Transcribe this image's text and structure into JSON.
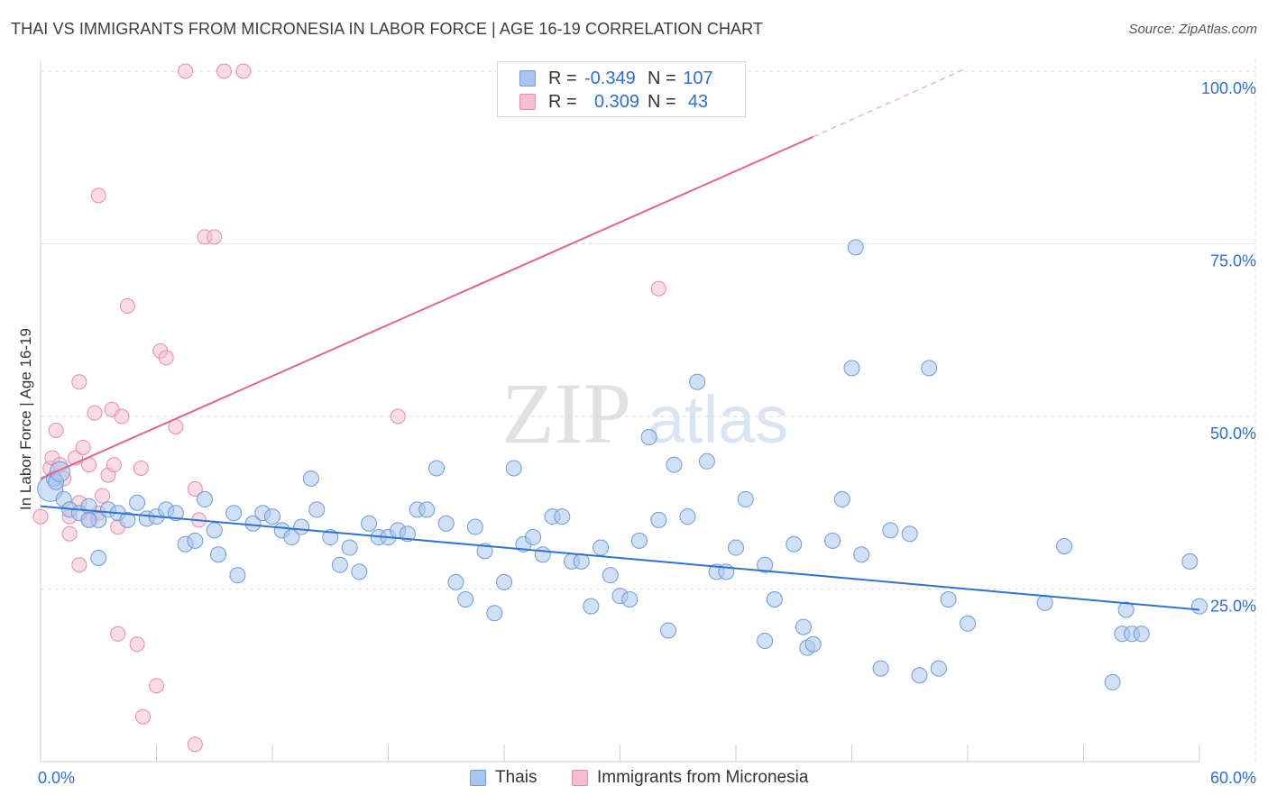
{
  "title": "THAI VS IMMIGRANTS FROM MICRONESIA IN LABOR FORCE | AGE 16-19 CORRELATION CHART",
  "source": "Source: ZipAtlas.com",
  "watermark": {
    "zip": "ZIP",
    "atlas": "atlas"
  },
  "colors": {
    "blue_fill": "#a9c6ee",
    "blue_stroke": "#6f9bd8",
    "blue_line": "#2f72cf",
    "pink_fill": "#f6bfd0",
    "pink_stroke": "#e98aab",
    "pink_line": "#e2648f",
    "axis_text": "#2e6fd1",
    "grid": "#dcdcdc"
  },
  "legend": {
    "rows": [
      {
        "r_label": "R =",
        "r_value": "-0.349",
        "n_label": "N =",
        "n_value": "107"
      },
      {
        "r_label": "R =",
        "r_value": "0.309",
        "n_label": "N =",
        "n_value": "43"
      }
    ]
  },
  "bottom_legend": {
    "series1": "Thais",
    "series2": "Immigrants from Micronesia"
  },
  "chart_data": {
    "type": "scatter",
    "title": "THAI VS IMMIGRANTS FROM MICRONESIA IN LABOR FORCE | AGE 16-19 CORRELATION CHART",
    "xlabel": "",
    "ylabel": "In Labor Force | Age 16-19",
    "xlim": [
      0,
      60
    ],
    "ylim": [
      0,
      100
    ],
    "x_tick_labels": [
      "0.0%",
      "60.0%"
    ],
    "y_tick_labels": [
      "25.0%",
      "50.0%",
      "75.0%",
      "100.0%"
    ],
    "y_ticks": [
      25,
      50,
      75,
      100
    ],
    "grid": true,
    "legend_placement": "top-center",
    "series": [
      {
        "name": "Thais",
        "r": -0.349,
        "n": 107,
        "trend": {
          "x": [
            0,
            60
          ],
          "y": [
            37.0,
            22.0
          ]
        },
        "points": [
          [
            0.5,
            39.5
          ],
          [
            0.7,
            41
          ],
          [
            1.2,
            38
          ],
          [
            1.5,
            36.5
          ],
          [
            2,
            36
          ],
          [
            2.5,
            37
          ],
          [
            3,
            35
          ],
          [
            3.5,
            36.5
          ],
          [
            4,
            36
          ],
          [
            3,
            29.5
          ],
          [
            4.5,
            35
          ],
          [
            5,
            37.5
          ],
          [
            5.5,
            35.2
          ],
          [
            6,
            35.5
          ],
          [
            6.5,
            36.5
          ],
          [
            7,
            36
          ],
          [
            7.5,
            31.5
          ],
          [
            8,
            32
          ],
          [
            8.5,
            38
          ],
          [
            9,
            33.5
          ],
          [
            9.2,
            30
          ],
          [
            10,
            36
          ],
          [
            10.2,
            27
          ],
          [
            11,
            34.5
          ],
          [
            11.5,
            36
          ],
          [
            12,
            35.5
          ],
          [
            12.5,
            33.5
          ],
          [
            13,
            32.5
          ],
          [
            14,
            41
          ],
          [
            14.3,
            36.5
          ],
          [
            15,
            32.5
          ],
          [
            15.5,
            28.5
          ],
          [
            16,
            31
          ],
          [
            16.5,
            27.5
          ],
          [
            17,
            34.5
          ],
          [
            17.5,
            32.5
          ],
          [
            18,
            32.5
          ],
          [
            18.5,
            33.5
          ],
          [
            19,
            33
          ],
          [
            19.5,
            36.5
          ],
          [
            20,
            36.5
          ],
          [
            20.5,
            42.5
          ],
          [
            21,
            34.5
          ],
          [
            21.5,
            26
          ],
          [
            22,
            23.5
          ],
          [
            22.5,
            34
          ],
          [
            23,
            30.5
          ],
          [
            23.5,
            21.5
          ],
          [
            24,
            26
          ],
          [
            24.5,
            42.5
          ],
          [
            25,
            31.5
          ],
          [
            25.5,
            32.5
          ],
          [
            26,
            30
          ],
          [
            26.5,
            35.5
          ],
          [
            27,
            35.5
          ],
          [
            27.5,
            29
          ],
          [
            28,
            29
          ],
          [
            28.5,
            22.5
          ],
          [
            29,
            31
          ],
          [
            29.5,
            27
          ],
          [
            30,
            24
          ],
          [
            30.5,
            23.5
          ],
          [
            31,
            32
          ],
          [
            31.5,
            47
          ],
          [
            32,
            35
          ],
          [
            32.5,
            19
          ],
          [
            32.8,
            43
          ],
          [
            33.5,
            35.5
          ],
          [
            34,
            55
          ],
          [
            34.5,
            43.5
          ],
          [
            35,
            27.5
          ],
          [
            35.5,
            27.5
          ],
          [
            36,
            31
          ],
          [
            36.5,
            38
          ],
          [
            37.5,
            28.5
          ],
          [
            37.5,
            17.5
          ],
          [
            38,
            23.5
          ],
          [
            39,
            31.5
          ],
          [
            39.5,
            19.5
          ],
          [
            39.7,
            16.5
          ],
          [
            40,
            17
          ],
          [
            41,
            32
          ],
          [
            41.5,
            38
          ],
          [
            42.2,
            74.5
          ],
          [
            42,
            57
          ],
          [
            42.5,
            30
          ],
          [
            43.5,
            13.5
          ],
          [
            44,
            33.5
          ],
          [
            45,
            33
          ],
          [
            45.5,
            12.5
          ],
          [
            46,
            57
          ],
          [
            46.5,
            13.5
          ],
          [
            47,
            23.5
          ],
          [
            48,
            20
          ],
          [
            52,
            23
          ],
          [
            53,
            31.2
          ],
          [
            55.5,
            11.5
          ],
          [
            56,
            18.5
          ],
          [
            56.2,
            22
          ],
          [
            56.5,
            18.5
          ],
          [
            57,
            18.5
          ],
          [
            59.5,
            29
          ],
          [
            60,
            22.5
          ],
          [
            0.8,
            40.5
          ],
          [
            2.5,
            35
          ],
          [
            13.5,
            34
          ],
          [
            1.0,
            42.0
          ]
        ]
      },
      {
        "name": "Immigrants from Micronesia",
        "r": 0.309,
        "n": 43,
        "trend": {
          "x": [
            0,
            40
          ],
          "y": [
            41.0,
            90.5
          ]
        },
        "trend_dashed": {
          "x": [
            40,
            48
          ],
          "y": [
            90.5,
            100.5
          ]
        },
        "points": [
          [
            0,
            35.5
          ],
          [
            0.5,
            42.5
          ],
          [
            0.6,
            44
          ],
          [
            0.8,
            48
          ],
          [
            1,
            43
          ],
          [
            1.2,
            41
          ],
          [
            1.5,
            33
          ],
          [
            1.5,
            35.5
          ],
          [
            1.8,
            44
          ],
          [
            2,
            37.5
          ],
          [
            2,
            28.5
          ],
          [
            2,
            55
          ],
          [
            2.2,
            45.5
          ],
          [
            2.5,
            35
          ],
          [
            2.5,
            43
          ],
          [
            2.8,
            50.5
          ],
          [
            3,
            36
          ],
          [
            3,
            82
          ],
          [
            3.2,
            38.5
          ],
          [
            3.5,
            41.5
          ],
          [
            3.7,
            51
          ],
          [
            3.8,
            43
          ],
          [
            4,
            18.5
          ],
          [
            4,
            34
          ],
          [
            4.2,
            50
          ],
          [
            4.5,
            66
          ],
          [
            5,
            17
          ],
          [
            5.2,
            42.5
          ],
          [
            5.3,
            6.5
          ],
          [
            6,
            11
          ],
          [
            6.2,
            59.5
          ],
          [
            6.5,
            58.5
          ],
          [
            7,
            48.5
          ],
          [
            7.5,
            100
          ],
          [
            8,
            2.5
          ],
          [
            8,
            39.5
          ],
          [
            8.2,
            35
          ],
          [
            8.5,
            76
          ],
          [
            9,
            76
          ],
          [
            9.5,
            100
          ],
          [
            10.5,
            100
          ],
          [
            18.5,
            50
          ],
          [
            32,
            68.5
          ]
        ]
      }
    ]
  }
}
